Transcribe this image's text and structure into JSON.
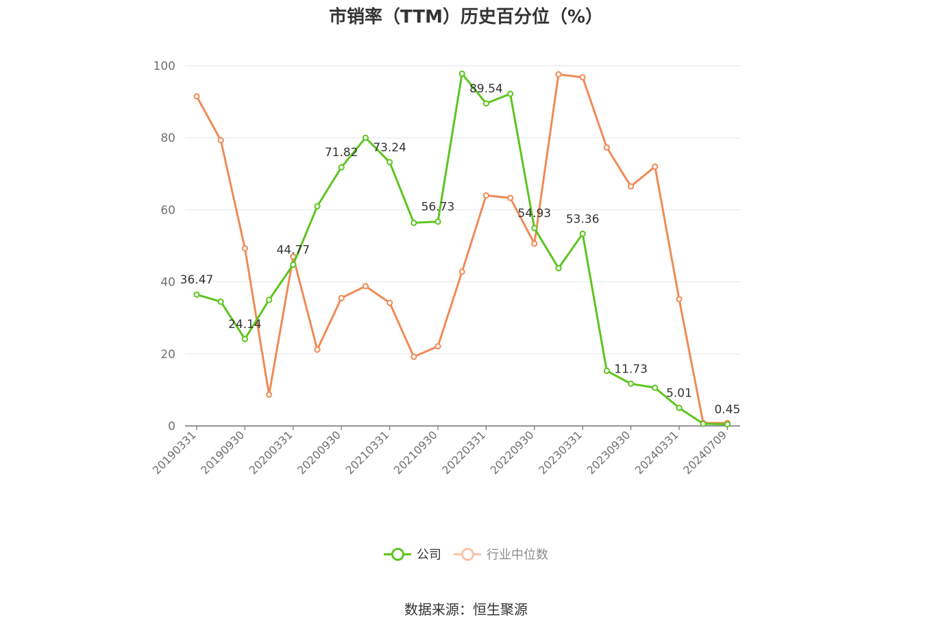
{
  "chart_data": {
    "type": "line",
    "title": "市销率（TTM）历史百分位（%）",
    "ylim": [
      0,
      100
    ],
    "yticks": [
      0,
      20,
      40,
      60,
      80,
      100
    ],
    "x": [
      "20190331",
      "20190630",
      "20190930",
      "20191231",
      "20200331",
      "20200630",
      "20200930",
      "20201231",
      "20210331",
      "20210630",
      "20210930",
      "20211231",
      "20220331",
      "20220630",
      "20220930",
      "20221231",
      "20230331",
      "20230630",
      "20230930",
      "20231231",
      "20240331",
      "20240630",
      "20240709"
    ],
    "xtick_labels": [
      "20190331",
      "20190930",
      "20200331",
      "20200930",
      "20210331",
      "20210930",
      "20220331",
      "20220930",
      "20230331",
      "20230930",
      "20240331",
      "20240709"
    ],
    "series": [
      {
        "name": "公司",
        "color": "#5cc51e",
        "values": [
          36.47,
          34.5,
          24.14,
          35.0,
          44.77,
          61.0,
          71.82,
          80.0,
          73.24,
          56.4,
          56.73,
          97.8,
          89.54,
          92.2,
          54.93,
          43.8,
          53.36,
          15.3,
          11.73,
          10.6,
          5.01,
          0.6,
          0.45
        ],
        "data_labels": [
          {
            "index": 0,
            "text": "36.47"
          },
          {
            "index": 2,
            "text": "24.14"
          },
          {
            "index": 4,
            "text": "44.77"
          },
          {
            "index": 6,
            "text": "71.82"
          },
          {
            "index": 8,
            "text": "73.24"
          },
          {
            "index": 10,
            "text": "56.73"
          },
          {
            "index": 12,
            "text": "89.54"
          },
          {
            "index": 14,
            "text": "54.93"
          },
          {
            "index": 16,
            "text": "53.36"
          },
          {
            "index": 18,
            "text": "11.73"
          },
          {
            "index": 20,
            "text": "5.01"
          },
          {
            "index": 22,
            "text": "0.45"
          }
        ]
      },
      {
        "name": "行业中位数",
        "color": "#f08a55",
        "values": [
          91.5,
          79.3,
          49.3,
          8.7,
          47.0,
          21.2,
          35.5,
          38.8,
          34.2,
          19.2,
          22.1,
          42.8,
          64.0,
          63.3,
          50.6,
          97.6,
          96.8,
          77.3,
          66.5,
          72.0,
          35.2,
          0.8,
          0.8
        ]
      }
    ],
    "grid": true,
    "legend_position": "bottom-center"
  },
  "source": "数据来源：恒生聚源"
}
